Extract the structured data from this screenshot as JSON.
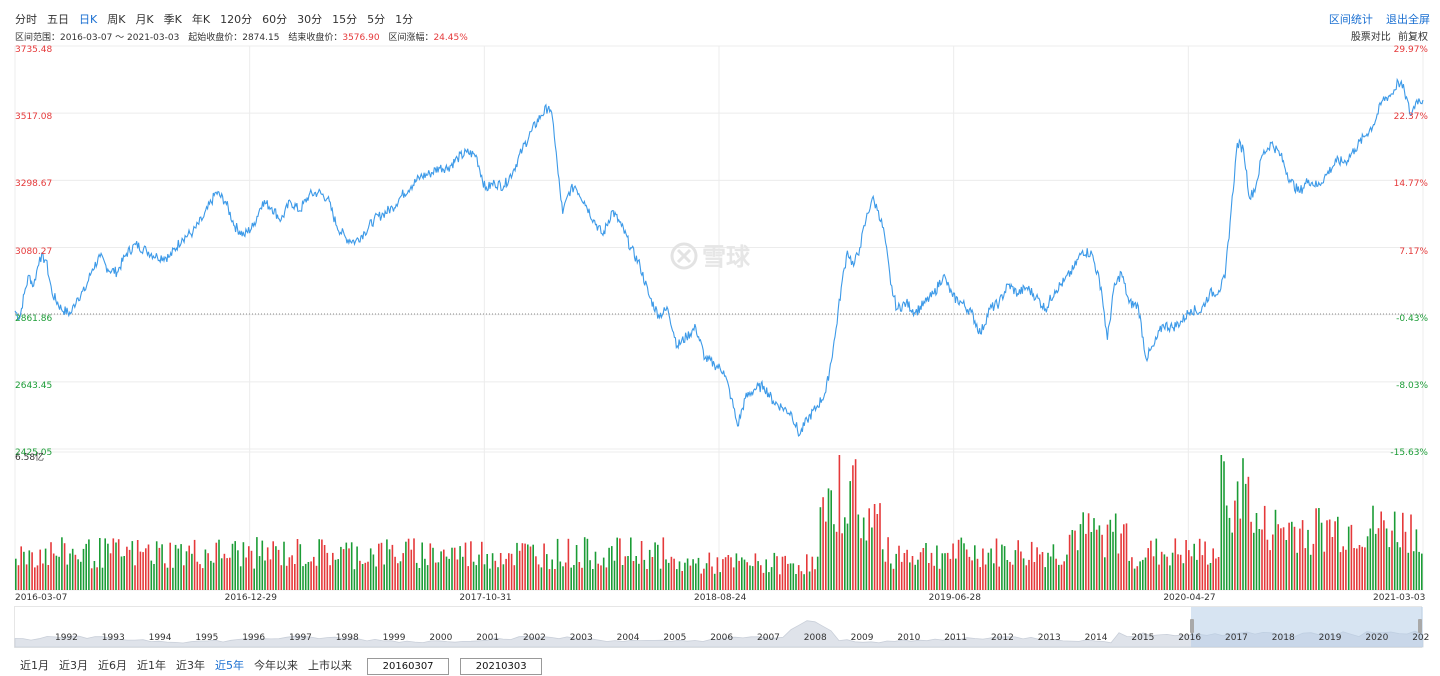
{
  "toolbar": {
    "periods": [
      "分时",
      "五日",
      "日K",
      "周K",
      "月K",
      "季K",
      "年K",
      "120分",
      "60分",
      "30分",
      "15分",
      "5分",
      "1分"
    ],
    "active_period_index": 2,
    "interval_stats": "区间统计",
    "exit_fullscreen": "退出全屏"
  },
  "info": {
    "range_label": "区间范围：2016-03-07 ～ 2021-03-03",
    "start_label": "起始收盘价：",
    "start_value": "2874.15",
    "end_label": "结束收盘价：",
    "end_value": "3576.90",
    "change_label": "区间涨幅：",
    "change_value": "24.45%",
    "compare": "股票对比",
    "adjust": "前复权"
  },
  "watermark": "雪球",
  "chart_data": {
    "type": "line",
    "x_tick_labels": [
      "2016-03-07",
      "2016-12-29",
      "2017-10-31",
      "2018-08-24",
      "2019-06-28",
      "2020-04-27",
      "2021-03-03"
    ],
    "y_left_labels": [
      "3735.48",
      "3517.08",
      "3298.67",
      "3080.27",
      "2861.86",
      "2643.45",
      "2425.05"
    ],
    "y_right_labels": [
      "29.97%",
      "22.37%",
      "14.77%",
      "7.17%",
      "-0.43%",
      "-8.03%",
      "-15.63%"
    ],
    "ylim": [
      2425.05,
      3735.48
    ],
    "reference_close": 2874.15,
    "line_color": "#3d9ae8",
    "up_color": "#e5393a",
    "down_color": "#1b9c36",
    "volume_max_label": "6.58亿",
    "price_series": [
      [
        0,
        2874
      ],
      [
        3,
        2850
      ],
      [
        6,
        2930
      ],
      [
        9,
        2990
      ],
      [
        12,
        2955
      ],
      [
        16,
        3050
      ],
      [
        20,
        3040
      ],
      [
        24,
        2930
      ],
      [
        30,
        2880
      ],
      [
        36,
        2865
      ],
      [
        40,
        2915
      ],
      [
        45,
        2940
      ],
      [
        50,
        3010
      ],
      [
        55,
        3050
      ],
      [
        60,
        3010
      ],
      [
        66,
        3000
      ],
      [
        72,
        3060
      ],
      [
        78,
        3090
      ],
      [
        85,
        3070
      ],
      [
        92,
        3050
      ],
      [
        100,
        3050
      ],
      [
        108,
        3110
      ],
      [
        115,
        3130
      ],
      [
        122,
        3180
      ],
      [
        130,
        3260
      ],
      [
        136,
        3230
      ],
      [
        142,
        3150
      ],
      [
        148,
        3120
      ],
      [
        154,
        3150
      ],
      [
        160,
        3230
      ],
      [
        166,
        3210
      ],
      [
        172,
        3170
      ],
      [
        178,
        3230
      ],
      [
        184,
        3200
      ],
      [
        190,
        3250
      ],
      [
        196,
        3260
      ],
      [
        202,
        3240
      ],
      [
        208,
        3150
      ],
      [
        214,
        3110
      ],
      [
        220,
        3100
      ],
      [
        226,
        3130
      ],
      [
        232,
        3170
      ],
      [
        238,
        3190
      ],
      [
        244,
        3210
      ],
      [
        250,
        3250
      ],
      [
        256,
        3280
      ],
      [
        262,
        3310
      ],
      [
        268,
        3320
      ],
      [
        274,
        3340
      ],
      [
        280,
        3340
      ],
      [
        286,
        3370
      ],
      [
        292,
        3390
      ],
      [
        298,
        3380
      ],
      [
        304,
        3270
      ],
      [
        310,
        3290
      ],
      [
        316,
        3280
      ],
      [
        322,
        3330
      ],
      [
        328,
        3400
      ],
      [
        334,
        3460
      ],
      [
        340,
        3510
      ],
      [
        345,
        3540
      ],
      [
        348,
        3480
      ],
      [
        351,
        3320
      ],
      [
        354,
        3190
      ],
      [
        358,
        3260
      ],
      [
        362,
        3280
      ],
      [
        368,
        3230
      ],
      [
        374,
        3170
      ],
      [
        380,
        3120
      ],
      [
        386,
        3200
      ],
      [
        392,
        3150
      ],
      [
        398,
        3080
      ],
      [
        404,
        3020
      ],
      [
        410,
        2920
      ],
      [
        416,
        2860
      ],
      [
        422,
        2880
      ],
      [
        428,
        2760
      ],
      [
        434,
        2790
      ],
      [
        440,
        2820
      ],
      [
        446,
        2720
      ],
      [
        452,
        2700
      ],
      [
        458,
        2680
      ],
      [
        463,
        2590
      ],
      [
        467,
        2500
      ],
      [
        472,
        2590
      ],
      [
        478,
        2620
      ],
      [
        484,
        2630
      ],
      [
        490,
        2580
      ],
      [
        496,
        2560
      ],
      [
        502,
        2540
      ],
      [
        507,
        2470
      ],
      [
        512,
        2520
      ],
      [
        518,
        2560
      ],
      [
        524,
        2610
      ],
      [
        530,
        2790
      ],
      [
        534,
        2950
      ],
      [
        538,
        3070
      ],
      [
        542,
        3020
      ],
      [
        546,
        3080
      ],
      [
        550,
        3170
      ],
      [
        554,
        3240
      ],
      [
        558,
        3200
      ],
      [
        562,
        3120
      ],
      [
        566,
        2960
      ],
      [
        570,
        2880
      ],
      [
        576,
        2900
      ],
      [
        582,
        2870
      ],
      [
        588,
        2900
      ],
      [
        594,
        2930
      ],
      [
        600,
        2990
      ],
      [
        606,
        2920
      ],
      [
        612,
        2900
      ],
      [
        618,
        2870
      ],
      [
        624,
        2800
      ],
      [
        630,
        2880
      ],
      [
        636,
        2900
      ],
      [
        642,
        2960
      ],
      [
        648,
        2930
      ],
      [
        654,
        2950
      ],
      [
        660,
        2920
      ],
      [
        666,
        2880
      ],
      [
        672,
        2940
      ],
      [
        678,
        2970
      ],
      [
        684,
        3010
      ],
      [
        690,
        3070
      ],
      [
        696,
        3060
      ],
      [
        702,
        2950
      ],
      [
        706,
        2780
      ],
      [
        710,
        2940
      ],
      [
        715,
        3000
      ],
      [
        720,
        2900
      ],
      [
        726,
        2890
      ],
      [
        731,
        2720
      ],
      [
        736,
        2760
      ],
      [
        742,
        2830
      ],
      [
        748,
        2820
      ],
      [
        754,
        2840
      ],
      [
        760,
        2880
      ],
      [
        766,
        2870
      ],
      [
        772,
        2930
      ],
      [
        778,
        2940
      ],
      [
        782,
        2980
      ],
      [
        786,
        3200
      ],
      [
        790,
        3420
      ],
      [
        794,
        3400
      ],
      [
        798,
        3240
      ],
      [
        802,
        3280
      ],
      [
        806,
        3380
      ],
      [
        812,
        3420
      ],
      [
        818,
        3380
      ],
      [
        824,
        3300
      ],
      [
        830,
        3260
      ],
      [
        836,
        3300
      ],
      [
        842,
        3280
      ],
      [
        848,
        3320
      ],
      [
        854,
        3360
      ],
      [
        860,
        3360
      ],
      [
        866,
        3400
      ],
      [
        872,
        3440
      ],
      [
        878,
        3480
      ],
      [
        884,
        3560
      ],
      [
        890,
        3580
      ],
      [
        894,
        3620
      ],
      [
        898,
        3590
      ],
      [
        902,
        3510
      ],
      [
        906,
        3560
      ],
      [
        910,
        3560
      ]
    ]
  },
  "navigator": {
    "years": [
      "1992",
      "1993",
      "1994",
      "1995",
      "1996",
      "1997",
      "1998",
      "1999",
      "2000",
      "2001",
      "2002",
      "2003",
      "2004",
      "2005",
      "2006",
      "2007",
      "2008",
      "2009",
      "2010",
      "2011",
      "2012",
      "2013",
      "2014",
      "2015",
      "2016",
      "2017",
      "2018",
      "2019",
      "2020",
      "202"
    ]
  },
  "ranges": {
    "items": [
      "近1月",
      "近3月",
      "近6月",
      "近1年",
      "近3年",
      "近5年",
      "今年以来",
      "上市以来"
    ],
    "active_index": 5,
    "start_date": "20160307",
    "end_date": "20210303"
  }
}
